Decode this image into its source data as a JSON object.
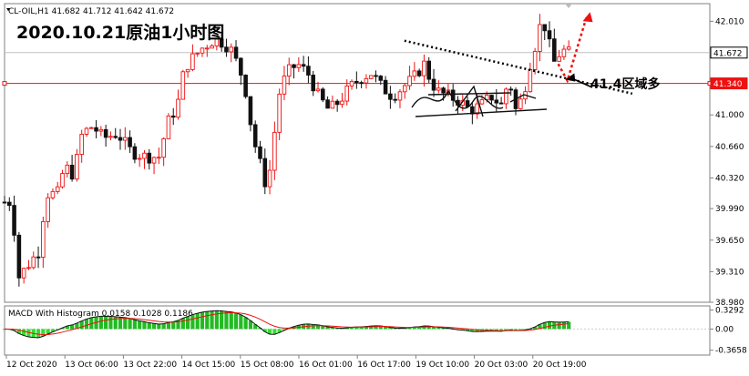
{
  "header": {
    "symbol_line": "CL-OIL,H1  41.682 41.712 41.642 41.672",
    "big_title": "2020.10.21原油1小时图",
    "annotation": "41.4区域多"
  },
  "chart_data": [
    {
      "type": "candlestick",
      "symbol": "CL-OIL",
      "timeframe": "H1",
      "ohlc_last": {
        "open": 41.682,
        "high": 41.712,
        "low": 41.642,
        "close": 41.672
      },
      "ylim": [
        38.98,
        42.2
      ],
      "yticks": [
        "42.010",
        "41.680",
        "41.340",
        "41.000",
        "40.660",
        "40.320",
        "39.990",
        "39.650",
        "39.310",
        "38.980"
      ],
      "price_labels": [
        {
          "value": 41.672,
          "text": "41.672",
          "color": "#000000"
        },
        {
          "value": 41.34,
          "text": "41.340",
          "color": "#ee1111"
        }
      ],
      "hlines": [
        {
          "value": 41.34,
          "color": "#ee1111"
        },
        {
          "value": 41.672,
          "color": "#c0c0c0"
        }
      ],
      "xtick_labels": [
        "12 Oct 2020",
        "13 Oct 06:00",
        "13 Oct 22:00",
        "14 Oct 15:00",
        "15 Oct 08:00",
        "16 Oct 01:00",
        "16 Oct 17:00",
        "19 Oct 10:00",
        "20 Oct 03:00",
        "20 Oct 19:00"
      ],
      "colors": {
        "up": "#ee1111",
        "down": "#111111",
        "arrow": "#ee1111"
      },
      "trendline": {
        "from": [
          0.567,
          41.8
        ],
        "to": [
          0.89,
          41.23
        ],
        "style": "dotted"
      },
      "projection": [
        [
          0.785,
          41.55
        ],
        [
          0.798,
          41.37
        ],
        [
          0.825,
          42.05
        ]
      ],
      "annotation_arrow_to": [
        0.795,
        41.38
      ],
      "path": [
        [
          0.0,
          40.06
        ],
        [
          0.01,
          40.06
        ],
        [
          0.02,
          39.25
        ],
        [
          0.035,
          39.4
        ],
        [
          0.05,
          39.55
        ],
        [
          0.058,
          40.15
        ],
        [
          0.075,
          40.15
        ],
        [
          0.085,
          40.45
        ],
        [
          0.098,
          40.35
        ],
        [
          0.11,
          40.8
        ],
        [
          0.125,
          40.88
        ],
        [
          0.14,
          40.75
        ],
        [
          0.16,
          40.8
        ],
        [
          0.18,
          40.6
        ],
        [
          0.2,
          40.55
        ],
        [
          0.22,
          40.55
        ],
        [
          0.23,
          40.9
        ],
        [
          0.245,
          41.1
        ],
        [
          0.255,
          41.5
        ],
        [
          0.265,
          41.6
        ],
        [
          0.28,
          41.72
        ],
        [
          0.295,
          41.8
        ],
        [
          0.305,
          41.8
        ],
        [
          0.32,
          41.72
        ],
        [
          0.33,
          41.55
        ],
        [
          0.34,
          41.35
        ],
        [
          0.348,
          40.95
        ],
        [
          0.355,
          40.68
        ],
        [
          0.365,
          40.4
        ],
        [
          0.372,
          40.2
        ],
        [
          0.38,
          40.6
        ],
        [
          0.388,
          41.2
        ],
        [
          0.4,
          41.45
        ],
        [
          0.415,
          41.55
        ],
        [
          0.43,
          41.45
        ],
        [
          0.445,
          41.2
        ],
        [
          0.46,
          41.05
        ],
        [
          0.475,
          41.15
        ],
        [
          0.49,
          41.3
        ],
        [
          0.505,
          41.4
        ],
        [
          0.52,
          41.45
        ],
        [
          0.535,
          41.3
        ],
        [
          0.55,
          41.2
        ],
        [
          0.565,
          41.3
        ],
        [
          0.58,
          41.4
        ],
        [
          0.595,
          41.55
        ],
        [
          0.605,
          41.35
        ],
        [
          0.615,
          41.25
        ],
        [
          0.63,
          41.2
        ],
        [
          0.645,
          41.15
        ],
        [
          0.66,
          41.05
        ],
        [
          0.675,
          41.1
        ],
        [
          0.69,
          41.2
        ],
        [
          0.705,
          41.1
        ],
        [
          0.715,
          41.4
        ],
        [
          0.725,
          41.05
        ],
        [
          0.735,
          41.2
        ],
        [
          0.745,
          41.55
        ],
        [
          0.755,
          41.82
        ],
        [
          0.762,
          42.05
        ],
        [
          0.77,
          41.85
        ],
        [
          0.778,
          41.55
        ],
        [
          0.79,
          41.7
        ],
        [
          0.8,
          41.67
        ]
      ]
    },
    {
      "type": "macd",
      "title": "MACD With Histogram 0.0158 0.1028 0.1186",
      "values": {
        "macd": 0.0158,
        "signal": 0.1028,
        "histogram": 0.1186
      },
      "ylim": [
        -0.45,
        0.4
      ],
      "yticks": [
        "0.3292",
        "0.00",
        "-0.3658"
      ],
      "colors": {
        "positive_hist": "#22bb22",
        "negative_hist": "#33dd33",
        "macd_line": "#111111",
        "signal_line": "#ee1111"
      }
    }
  ]
}
